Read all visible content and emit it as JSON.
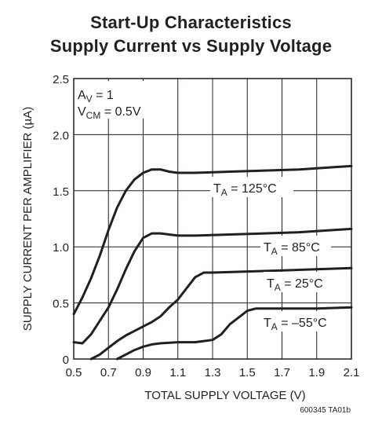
{
  "chart_data": {
    "type": "line",
    "title": "Start-Up Characteristics",
    "subtitle": "Supply Current vs Supply Voltage",
    "xlabel": "TOTAL SUPPLY VOLTAGE (V)",
    "ylabel": "SUPPLY CURRENT PER AMPLIFIER (µA)",
    "xlim": [
      0.5,
      2.1
    ],
    "ylim": [
      0,
      2.5
    ],
    "x_ticks": [
      "0.5",
      "0.7",
      "0.9",
      "1.1",
      "1.3",
      "1.5",
      "1.7",
      "1.9",
      "2.1"
    ],
    "y_ticks": [
      "0",
      "0.5",
      "1.0",
      "1.5",
      "2.0",
      "2.5"
    ],
    "grid": true,
    "conditions": [
      {
        "main": "A",
        "sub": "V",
        "rest": " = 1"
      },
      {
        "main": "V",
        "sub": "CM",
        "rest": " = 0.5V"
      }
    ],
    "series": [
      {
        "name": "T_A = 125°C",
        "label_main": "T",
        "label_sub": "A",
        "label_rest": " = 125°C",
        "points": [
          [
            0.5,
            0.4
          ],
          [
            0.55,
            0.55
          ],
          [
            0.6,
            0.72
          ],
          [
            0.65,
            0.92
          ],
          [
            0.7,
            1.15
          ],
          [
            0.75,
            1.35
          ],
          [
            0.8,
            1.5
          ],
          [
            0.85,
            1.6
          ],
          [
            0.9,
            1.66
          ],
          [
            0.95,
            1.69
          ],
          [
            1.0,
            1.69
          ],
          [
            1.05,
            1.67
          ],
          [
            1.1,
            1.66
          ],
          [
            1.2,
            1.66
          ],
          [
            1.4,
            1.67
          ],
          [
            1.6,
            1.68
          ],
          [
            1.8,
            1.69
          ],
          [
            2.0,
            1.71
          ],
          [
            2.1,
            1.72
          ]
        ]
      },
      {
        "name": "T_A = 85°C",
        "label_main": "T",
        "label_sub": "A",
        "label_rest": " = 85°C",
        "points": [
          [
            0.5,
            0.15
          ],
          [
            0.55,
            0.14
          ],
          [
            0.6,
            0.22
          ],
          [
            0.65,
            0.34
          ],
          [
            0.7,
            0.46
          ],
          [
            0.75,
            0.62
          ],
          [
            0.8,
            0.8
          ],
          [
            0.85,
            0.96
          ],
          [
            0.9,
            1.08
          ],
          [
            0.95,
            1.12
          ],
          [
            1.0,
            1.12
          ],
          [
            1.05,
            1.11
          ],
          [
            1.1,
            1.1
          ],
          [
            1.2,
            1.1
          ],
          [
            1.4,
            1.11
          ],
          [
            1.6,
            1.12
          ],
          [
            1.8,
            1.13
          ],
          [
            2.0,
            1.15
          ],
          [
            2.1,
            1.16
          ]
        ]
      },
      {
        "name": "T_A = 25°C",
        "label_main": "T",
        "label_sub": "A",
        "label_rest": " = 25°C",
        "points": [
          [
            0.6,
            0.0
          ],
          [
            0.65,
            0.04
          ],
          [
            0.7,
            0.1
          ],
          [
            0.75,
            0.16
          ],
          [
            0.8,
            0.21
          ],
          [
            0.85,
            0.25
          ],
          [
            0.9,
            0.29
          ],
          [
            0.95,
            0.33
          ],
          [
            1.0,
            0.38
          ],
          [
            1.05,
            0.46
          ],
          [
            1.1,
            0.53
          ],
          [
            1.15,
            0.63
          ],
          [
            1.2,
            0.73
          ],
          [
            1.25,
            0.77
          ],
          [
            1.3,
            0.77
          ],
          [
            1.5,
            0.78
          ],
          [
            1.7,
            0.79
          ],
          [
            1.9,
            0.8
          ],
          [
            2.1,
            0.81
          ]
        ]
      },
      {
        "name": "T_A = –55°C",
        "label_main": "T",
        "label_sub": "A",
        "label_rest": " = –55°C",
        "points": [
          [
            0.75,
            0.0
          ],
          [
            0.8,
            0.04
          ],
          [
            0.85,
            0.08
          ],
          [
            0.9,
            0.11
          ],
          [
            0.95,
            0.13
          ],
          [
            1.0,
            0.14
          ],
          [
            1.1,
            0.15
          ],
          [
            1.2,
            0.15
          ],
          [
            1.3,
            0.17
          ],
          [
            1.35,
            0.22
          ],
          [
            1.4,
            0.31
          ],
          [
            1.45,
            0.37
          ],
          [
            1.5,
            0.43
          ],
          [
            1.55,
            0.45
          ],
          [
            1.7,
            0.45
          ],
          [
            1.9,
            0.45
          ],
          [
            2.1,
            0.46
          ]
        ]
      }
    ]
  },
  "footer_code": "600345 TA01b"
}
